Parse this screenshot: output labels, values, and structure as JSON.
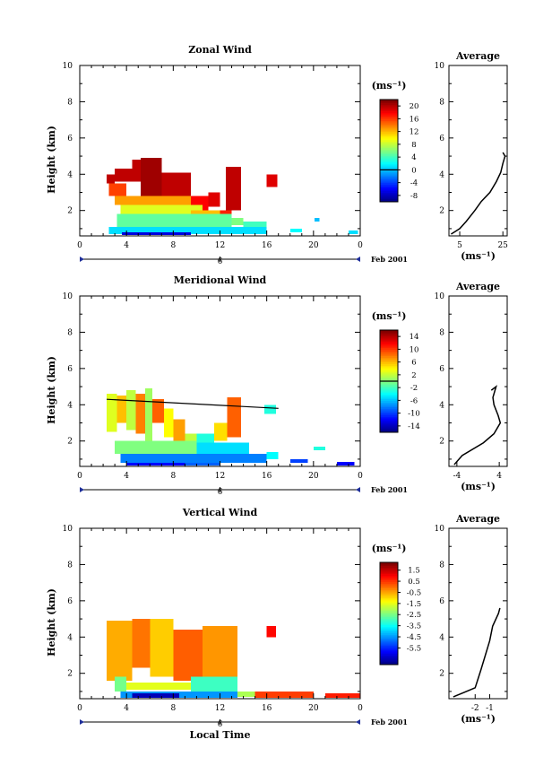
{
  "chart_data": [
    {
      "type": "heatmap",
      "title": "Zonal Wind",
      "ylabel": "Height (km)",
      "unit": "(ms⁻¹)",
      "xlim": [
        0,
        24
      ],
      "ylim": [
        0.6,
        10
      ],
      "xticks": [
        "0",
        "4",
        "8",
        "12",
        "16",
        "20",
        "0"
      ],
      "yticks": [
        "2",
        "4",
        "6",
        "8",
        "10"
      ],
      "colorbar": {
        "range": [
          -10,
          22
        ],
        "labels": [
          "20",
          "16",
          "12",
          "8",
          "4",
          "0",
          "-4",
          "-8"
        ],
        "zero_line": 0
      },
      "date_axis": {
        "label": "6",
        "date": "Feb 2001"
      },
      "blocks": [
        {
          "x0": 2.3,
          "x1": 3.0,
          "y0": 3.5,
          "y1": 4.0,
          "v": 20
        },
        {
          "x0": 3.0,
          "x1": 4.5,
          "y0": 3.6,
          "y1": 4.3,
          "v": 20
        },
        {
          "x0": 4.5,
          "x1": 5.2,
          "y0": 3.6,
          "y1": 4.8,
          "v": 20
        },
        {
          "x0": 5.2,
          "x1": 7.0,
          "y0": 2.8,
          "y1": 4.9,
          "v": 21
        },
        {
          "x0": 7.0,
          "x1": 9.5,
          "y0": 2.8,
          "y1": 4.1,
          "v": 20
        },
        {
          "x0": 9.5,
          "x1": 11.0,
          "y0": 2.0,
          "y1": 2.8,
          "v": 18
        },
        {
          "x0": 11.0,
          "x1": 12.0,
          "y0": 2.2,
          "y1": 3.0,
          "v": 19
        },
        {
          "x0": 12.0,
          "x1": 13.0,
          "y0": 1.5,
          "y1": 2.0,
          "v": 17
        },
        {
          "x0": 12.5,
          "x1": 13.8,
          "y0": 2.0,
          "y1": 4.4,
          "v": 20
        },
        {
          "x0": 16.0,
          "x1": 16.9,
          "y0": 3.3,
          "y1": 4.0,
          "v": 19
        },
        {
          "x0": 2.5,
          "x1": 4.0,
          "y0": 2.8,
          "y1": 3.5,
          "v": 16
        },
        {
          "x0": 3.0,
          "x1": 9.5,
          "y0": 2.3,
          "y1": 2.8,
          "v": 13
        },
        {
          "x0": 3.5,
          "x1": 10.5,
          "y0": 1.8,
          "y1": 2.3,
          "v": 9
        },
        {
          "x0": 9.5,
          "x1": 12.0,
          "y0": 1.5,
          "y1": 2.0,
          "v": 12
        },
        {
          "x0": 3.2,
          "x1": 13.0,
          "y0": 1.1,
          "y1": 1.8,
          "v": 5
        },
        {
          "x0": 13.0,
          "x1": 14.0,
          "y0": 1.2,
          "y1": 1.6,
          "v": 6
        },
        {
          "x0": 14.0,
          "x1": 16.0,
          "y0": 1.1,
          "y1": 1.4,
          "v": 4
        },
        {
          "x0": 2.5,
          "x1": 16.0,
          "y0": 0.7,
          "y1": 1.1,
          "v": 1
        },
        {
          "x0": 3.6,
          "x1": 9.5,
          "y0": 0.65,
          "y1": 0.8,
          "v": -7
        },
        {
          "x0": 18.0,
          "x1": 19.0,
          "y0": 0.8,
          "y1": 1.0,
          "v": 2
        },
        {
          "x0": 20.1,
          "x1": 20.5,
          "y0": 1.4,
          "y1": 1.6,
          "v": 0
        },
        {
          "x0": 23.0,
          "x1": 23.8,
          "y0": 0.7,
          "y1": 0.9,
          "v": 1
        }
      ],
      "profile": {
        "title": "Average",
        "xlim": [
          0,
          27
        ],
        "xticks": [
          "5",
          "25"
        ],
        "xlabel": "(ms⁻¹)",
        "points": [
          [
            1,
            0.7
          ],
          [
            5,
            1.0
          ],
          [
            8,
            1.4
          ],
          [
            12,
            2.0
          ],
          [
            15,
            2.5
          ],
          [
            19,
            3.0
          ],
          [
            22,
            3.6
          ],
          [
            24,
            4.1
          ],
          [
            25,
            4.6
          ],
          [
            26,
            5.0
          ],
          [
            25,
            5.2
          ]
        ]
      }
    },
    {
      "type": "heatmap",
      "title": "Meridional Wind",
      "ylabel": "Height (km)",
      "unit": "(ms⁻¹)",
      "xlim": [
        0,
        24
      ],
      "ylim": [
        0.6,
        10
      ],
      "xticks": [
        "0",
        "4",
        "8",
        "12",
        "16",
        "20",
        "0"
      ],
      "yticks": [
        "2",
        "4",
        "6",
        "8",
        "10"
      ],
      "colorbar": {
        "range": [
          -16,
          16
        ],
        "labels": [
          "14",
          "10",
          "6",
          "2",
          "-2",
          "-6",
          "-10",
          "-14"
        ],
        "zero_line": 0
      },
      "date_axis": {
        "label": "6",
        "date": "Feb 2001"
      },
      "blocks": [
        {
          "x0": 2.3,
          "x1": 3.2,
          "y0": 2.5,
          "y1": 4.6,
          "v": 3
        },
        {
          "x0": 3.2,
          "x1": 4.0,
          "y0": 3.0,
          "y1": 4.5,
          "v": 6
        },
        {
          "x0": 4.0,
          "x1": 4.8,
          "y0": 2.6,
          "y1": 4.8,
          "v": 2
        },
        {
          "x0": 4.8,
          "x1": 5.6,
          "y0": 2.4,
          "y1": 4.6,
          "v": 8
        },
        {
          "x0": 5.6,
          "x1": 6.2,
          "y0": 2.0,
          "y1": 4.9,
          "v": 1
        },
        {
          "x0": 6.2,
          "x1": 7.2,
          "y0": 3.0,
          "y1": 4.3,
          "v": 9
        },
        {
          "x0": 7.2,
          "x1": 8.0,
          "y0": 2.2,
          "y1": 3.8,
          "v": 4
        },
        {
          "x0": 8.0,
          "x1": 9.0,
          "y0": 2.0,
          "y1": 3.2,
          "v": 7
        },
        {
          "x0": 9.0,
          "x1": 10.0,
          "y0": 1.8,
          "y1": 2.4,
          "v": 2
        },
        {
          "x0": 10.0,
          "x1": 11.5,
          "y0": 1.9,
          "y1": 2.4,
          "v": -3
        },
        {
          "x0": 11.5,
          "x1": 12.6,
          "y0": 2.0,
          "y1": 3.0,
          "v": 5
        },
        {
          "x0": 12.6,
          "x1": 13.8,
          "y0": 2.2,
          "y1": 4.4,
          "v": 9
        },
        {
          "x0": 15.8,
          "x1": 16.8,
          "y0": 3.5,
          "y1": 4.0,
          "v": -3
        },
        {
          "x0": 3.0,
          "x1": 10.0,
          "y0": 1.3,
          "y1": 2.0,
          "v": 0
        },
        {
          "x0": 10.0,
          "x1": 14.5,
          "y0": 1.3,
          "y1": 1.9,
          "v": -5
        },
        {
          "x0": 3.5,
          "x1": 16.0,
          "y0": 0.8,
          "y1": 1.3,
          "v": -8
        },
        {
          "x0": 4.0,
          "x1": 9.0,
          "y0": 0.65,
          "y1": 0.8,
          "v": -12
        },
        {
          "x0": 9.0,
          "x1": 12.0,
          "y0": 0.65,
          "y1": 0.8,
          "v": -9
        },
        {
          "x0": 16.0,
          "x1": 17.0,
          "y0": 1.0,
          "y1": 1.4,
          "v": -4
        },
        {
          "x0": 18.0,
          "x1": 19.5,
          "y0": 0.8,
          "y1": 1.0,
          "v": -10
        },
        {
          "x0": 20.0,
          "x1": 21.0,
          "y0": 1.5,
          "y1": 1.7,
          "v": -3
        },
        {
          "x0": 22.0,
          "x1": 23.5,
          "y0": 0.65,
          "y1": 0.85,
          "v": -12
        }
      ],
      "contour_line": [
        [
          2.3,
          4.3
        ],
        [
          17.0,
          3.8
        ]
      ],
      "profile": {
        "title": "Average",
        "xlim": [
          -5.5,
          5.5
        ],
        "xticks": [
          "-4",
          "4"
        ],
        "xlabel": "(ms⁻¹)",
        "points": [
          [
            -4.5,
            0.7
          ],
          [
            -3,
            1.2
          ],
          [
            1,
            1.9
          ],
          [
            3,
            2.4
          ],
          [
            4.2,
            3.0
          ],
          [
            3.8,
            3.4
          ],
          [
            3.0,
            4.0
          ],
          [
            2.8,
            4.4
          ],
          [
            3.4,
            5.0
          ],
          [
            2.5,
            4.8
          ]
        ]
      }
    },
    {
      "type": "heatmap",
      "title": "Vertical Wind",
      "ylabel": "Height (km)",
      "xlabel": "Local Time",
      "unit": "(ms⁻¹)",
      "xlim": [
        0,
        24
      ],
      "ylim": [
        0.6,
        10
      ],
      "xticks": [
        "0",
        "4",
        "8",
        "12",
        "16",
        "20",
        "0"
      ],
      "yticks": [
        "2",
        "4",
        "6",
        "8",
        "10"
      ],
      "colorbar": {
        "range": [
          -7,
          2.2
        ],
        "labels": [
          "1.5",
          "0.5",
          "-0.5",
          "-1.5",
          "-2.5",
          "-3.5",
          "-4.5",
          "-5.5"
        ]
      },
      "date_axis": {
        "label": "6",
        "date": "Feb 2001"
      },
      "blocks": [
        {
          "x0": 2.3,
          "x1": 4.5,
          "y0": 1.6,
          "y1": 4.9,
          "v": -0.5
        },
        {
          "x0": 4.5,
          "x1": 6.0,
          "y0": 2.3,
          "y1": 5.0,
          "v": 0.0
        },
        {
          "x0": 6.0,
          "x1": 8.0,
          "y0": 1.8,
          "y1": 5.0,
          "v": -0.8
        },
        {
          "x0": 8.0,
          "x1": 10.5,
          "y0": 1.6,
          "y1": 4.4,
          "v": 0.2
        },
        {
          "x0": 10.5,
          "x1": 13.5,
          "y0": 1.5,
          "y1": 4.6,
          "v": -0.3
        },
        {
          "x0": 3.0,
          "x1": 4.0,
          "y0": 1.0,
          "y1": 1.8,
          "v": -2.5
        },
        {
          "x0": 4.0,
          "x1": 9.5,
          "y0": 1.1,
          "y1": 1.5,
          "v": -1.5
        },
        {
          "x0": 9.5,
          "x1": 13.5,
          "y0": 1.0,
          "y1": 1.8,
          "v": -3.0
        },
        {
          "x0": 3.5,
          "x1": 13.5,
          "y0": 0.65,
          "y1": 1.0,
          "v": -4.5
        },
        {
          "x0": 4.5,
          "x1": 8.5,
          "y0": 0.65,
          "y1": 0.9,
          "v": -6.5
        },
        {
          "x0": 13.5,
          "x1": 15.0,
          "y0": 0.7,
          "y1": 1.0,
          "v": -2.0
        },
        {
          "x0": 15.0,
          "x1": 20.0,
          "y0": 0.65,
          "y1": 1.0,
          "v": 0.5
        },
        {
          "x0": 16.0,
          "x1": 16.8,
          "y0": 4.0,
          "y1": 4.6,
          "v": 1.0
        },
        {
          "x0": 21.0,
          "x1": 24.0,
          "y0": 0.65,
          "y1": 0.9,
          "v": 0.8
        }
      ],
      "profile": {
        "title": "Average",
        "xlim": [
          -3.8,
          0.2
        ],
        "xticks": [
          "-2",
          "-1"
        ],
        "xlabel": "(ms⁻¹)",
        "points": [
          [
            -3.5,
            0.7
          ],
          [
            -2.9,
            0.9
          ],
          [
            -2.0,
            1.2
          ],
          [
            -1.8,
            1.7
          ],
          [
            -1.6,
            2.2
          ],
          [
            -1.3,
            3.0
          ],
          [
            -1.0,
            3.8
          ],
          [
            -0.8,
            4.6
          ],
          [
            -0.4,
            5.3
          ],
          [
            -0.3,
            5.6
          ]
        ]
      }
    }
  ]
}
